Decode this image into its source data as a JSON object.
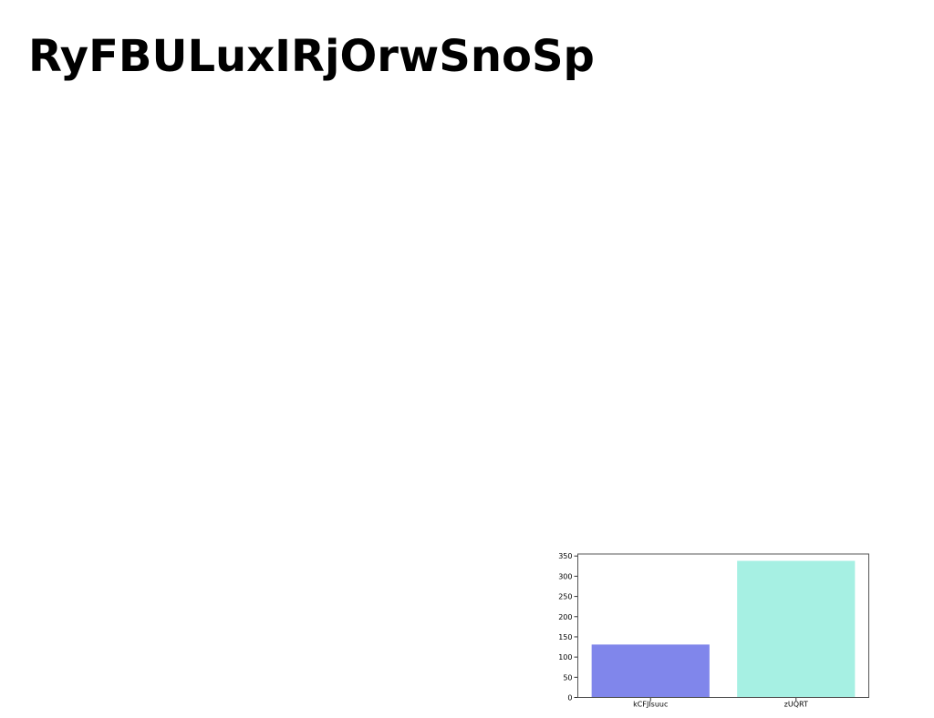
{
  "page": {
    "title": "RyFBULuxIRjOrwSnoSp"
  },
  "chart_data": {
    "type": "bar",
    "title": "",
    "xlabel": "",
    "ylabel": "",
    "categories": [
      "kCFJIsuuc",
      "zUQRT"
    ],
    "values": [
      131,
      338
    ],
    "bar_colors": [
      "#8086eb",
      "#a6f0e3"
    ],
    "ylim": [
      0,
      355
    ],
    "yticks": [
      0,
      50,
      100,
      150,
      200,
      250,
      300,
      350
    ],
    "grid": false,
    "legend": "none"
  }
}
